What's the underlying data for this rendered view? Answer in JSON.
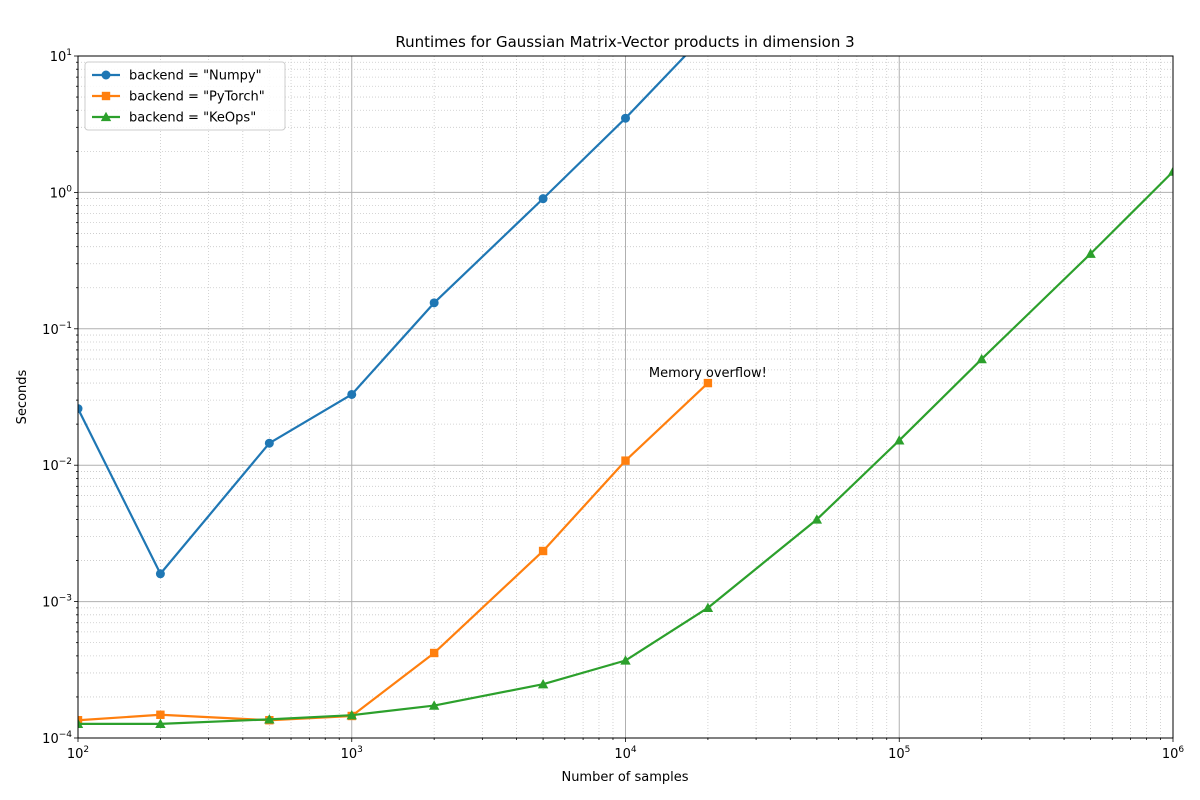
{
  "chart_data": {
    "type": "line",
    "title": "Runtimes for Gaussian Matrix-Vector products in dimension 3",
    "xlabel": "Number of samples",
    "ylabel": "Seconds",
    "xscale": "log",
    "yscale": "log",
    "xlim": [
      100,
      1000000
    ],
    "ylim": [
      0.0001,
      10
    ],
    "x_ticks": [
      {
        "base": "10",
        "exp": "2"
      },
      {
        "base": "10",
        "exp": "3"
      },
      {
        "base": "10",
        "exp": "4"
      },
      {
        "base": "10",
        "exp": "5"
      },
      {
        "base": "10",
        "exp": "6"
      }
    ],
    "y_ticks": [
      {
        "base": "10",
        "exp": "−4"
      },
      {
        "base": "10",
        "exp": "−3"
      },
      {
        "base": "10",
        "exp": "−2"
      },
      {
        "base": "10",
        "exp": "−1"
      },
      {
        "base": "10",
        "exp": "0"
      },
      {
        "base": "10",
        "exp": "1"
      }
    ],
    "grid": "major and minor",
    "legend_position": "top-left",
    "series": [
      {
        "name": "backend = \"Numpy\"",
        "color": "#1f77b4",
        "marker": "circle",
        "x": [
          100,
          200,
          500,
          1000,
          2000,
          5000,
          10000,
          20000
        ],
        "y": [
          0.026,
          0.0016,
          0.0145,
          0.033,
          0.155,
          0.9,
          3.5,
          15
        ]
      },
      {
        "name": "backend = \"PyTorch\"",
        "color": "#ff7f0e",
        "marker": "square",
        "x": [
          100,
          200,
          500,
          1000,
          2000,
          5000,
          10000,
          20000
        ],
        "y": [
          0.000135,
          0.000148,
          0.000135,
          0.000145,
          0.00042,
          0.00235,
          0.0108,
          0.04
        ]
      },
      {
        "name": "backend = \"KeOps\"",
        "color": "#2ca02c",
        "marker": "triangle",
        "x": [
          100,
          200,
          500,
          1000,
          2000,
          5000,
          10000,
          20000,
          50000,
          100000,
          200000,
          500000,
          1000000
        ],
        "y": [
          0.000127,
          0.000127,
          0.000137,
          0.000147,
          0.000173,
          0.000248,
          0.00037,
          0.0009,
          0.004,
          0.0152,
          0.06,
          0.355,
          1.42
        ]
      }
    ],
    "annotations": [
      {
        "text": "Memory overflow!",
        "x": 20000,
        "y": 0.04
      }
    ]
  }
}
